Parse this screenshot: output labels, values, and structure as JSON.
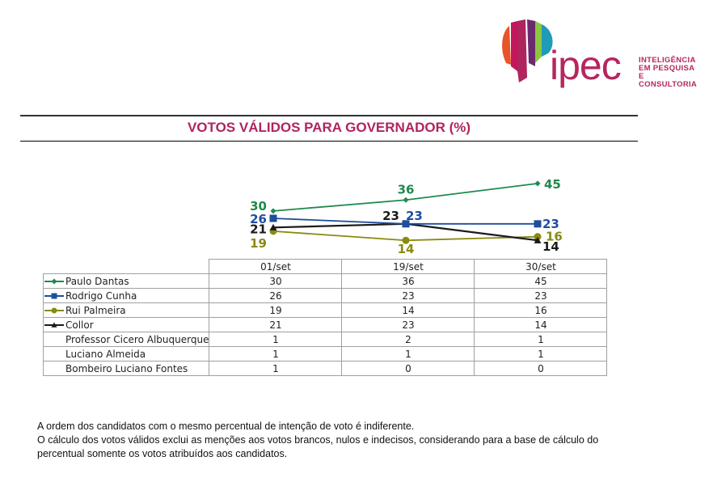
{
  "logo": {
    "word": "ipec",
    "tagline": [
      "INTELIGÊNCIA",
      "EM PESQUISA",
      "E CONSULTORIA"
    ]
  },
  "title": "VOTOS VÁLIDOS PARA GOVERNADOR (%)",
  "chart_data": {
    "type": "line",
    "title": "VOTOS VÁLIDOS PARA GOVERNADOR (%)",
    "categories": [
      "01/set",
      "19/set",
      "30/set"
    ],
    "xlabel": "",
    "ylabel": "",
    "ylim": [
      0,
      50
    ],
    "grid": false,
    "series": [
      {
        "name": "Paulo Dantas",
        "values": [
          30,
          36,
          45
        ],
        "color": "#1f8a4c",
        "marker": "diamond",
        "plotted": true
      },
      {
        "name": "Rodrigo Cunha",
        "values": [
          26,
          23,
          23
        ],
        "color": "#1f4e9c",
        "marker": "square",
        "plotted": true
      },
      {
        "name": "Rui Palmeira",
        "values": [
          19,
          14,
          16
        ],
        "color": "#8a8a0e",
        "marker": "circle",
        "plotted": true
      },
      {
        "name": "Collor",
        "values": [
          21,
          23,
          14
        ],
        "color": "#1a1a1a",
        "marker": "triangle",
        "plotted": true
      },
      {
        "name": "Professor Cicero Albuquerque",
        "values": [
          1,
          2,
          1
        ],
        "plotted": false
      },
      {
        "name": "Luciano Almeida",
        "values": [
          1,
          1,
          1
        ],
        "plotted": false
      },
      {
        "name": "Bombeiro Luciano Fontes",
        "values": [
          1,
          0,
          0
        ],
        "plotted": false
      }
    ]
  },
  "notes": [
    "A ordem dos candidatos com o mesmo percentual de intenção de voto é indiferente.",
    "O cálculo dos votos válidos exclui as menções aos votos brancos, nulos e indecisos, considerando para a base de cálculo do percentual somente os votos atribuídos aos candidatos."
  ]
}
